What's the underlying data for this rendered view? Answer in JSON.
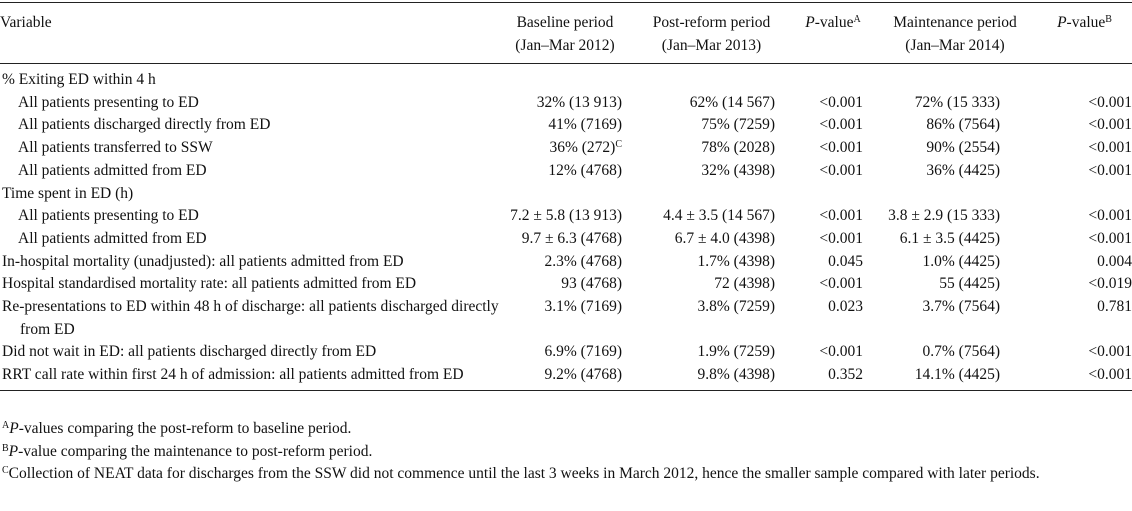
{
  "header": {
    "variable": "Variable",
    "baseline": [
      "Baseline period",
      "(Jan–Mar 2012)"
    ],
    "postreform": [
      "Post-reform period",
      "(Jan–Mar 2013)"
    ],
    "pvalue1": "P",
    "pvalue1_rest": "-value",
    "pvalue1_sup": "A",
    "maintenance": [
      "Maintenance period",
      "(Jan–Mar 2014)"
    ],
    "pvalue2": "P",
    "pvalue2_rest": "-value",
    "pvalue2_sup": "B"
  },
  "rows": [
    {
      "label": "% Exiting ED within 4 h",
      "vals": [
        "",
        "",
        "",
        "",
        ""
      ]
    },
    {
      "label": "All patients presenting to ED",
      "vals": [
        "32% (13 913)",
        "62% (14 567)",
        "<0.001",
        "72% (15 333)",
        "<0.001"
      ]
    },
    {
      "label": "All patients discharged directly from ED",
      "vals": [
        "41% (7169)",
        "75% (7259)",
        "<0.001",
        "86% (7564)",
        "<0.001"
      ]
    },
    {
      "label": "All patients transferred to SSW",
      "vals": [
        "36% (272)",
        "78% (2028)",
        "<0.001",
        "90% (2554)",
        "<0.001"
      ],
      "sup": "C"
    },
    {
      "label": "All patients admitted from ED",
      "vals": [
        "12% (4768)",
        "32% (4398)",
        "<0.001",
        "36% (4425)",
        "<0.001"
      ]
    },
    {
      "label": "Time spent in ED (h)",
      "vals": [
        "",
        "",
        "",
        "",
        ""
      ]
    },
    {
      "label": "All patients presenting to ED",
      "vals": [
        "7.2 ± 5.8 (13 913)",
        "4.4 ± 3.5 (14 567)",
        "<0.001",
        "3.8 ± 2.9 (15 333)",
        "<0.001"
      ]
    },
    {
      "label": "All patients admitted from ED",
      "vals": [
        "9.7 ± 6.3 (4768)",
        "6.7 ± 4.0 (4398)",
        "<0.001",
        "6.1 ± 3.5 (4425)",
        "<0.001"
      ]
    },
    {
      "label": "In-hospital mortality (unadjusted): all patients admitted from ED",
      "vals": [
        "2.3% (4768)",
        "1.7% (4398)",
        "0.045",
        "1.0% (4425)",
        "0.004"
      ]
    },
    {
      "label": "Hospital standardised mortality rate: all patients admitted from ED",
      "vals": [
        "93 (4768)",
        "72 (4398)",
        "<0.001",
        "55 (4425)",
        "<0.019"
      ]
    },
    {
      "label": "Re-presentations to ED within 48 h of discharge: all patients discharged directly from ED",
      "vals": [
        "3.1% (7169)",
        "3.8% (7259)",
        "0.023",
        "3.7% (7564)",
        "0.781"
      ]
    },
    {
      "label": "Did not wait in ED: all patients discharged directly from ED",
      "vals": [
        "6.9% (7169)",
        "1.9% (7259)",
        "<0.001",
        "0.7% (7564)",
        "<0.001"
      ]
    },
    {
      "label": "RRT call rate within first 24 h of admission: all patients admitted from ED",
      "vals": [
        "9.2% (4768)",
        "9.8% (4398)",
        "0.352",
        "14.1% (4425)",
        "<0.001"
      ]
    }
  ],
  "footnotes": {
    "a_mark": "A",
    "a_italic": "P",
    "a_text": "-values comparing the post-reform to baseline period.",
    "b_mark": "B",
    "b_italic": "P",
    "b_text": "-value comparing the maintenance to post-reform period.",
    "c_mark": "C",
    "c_text": "Collection of NEAT data for discharges from the SSW did not commence until the last 3 weeks in March 2012, hence the smaller sample compared with later periods."
  }
}
